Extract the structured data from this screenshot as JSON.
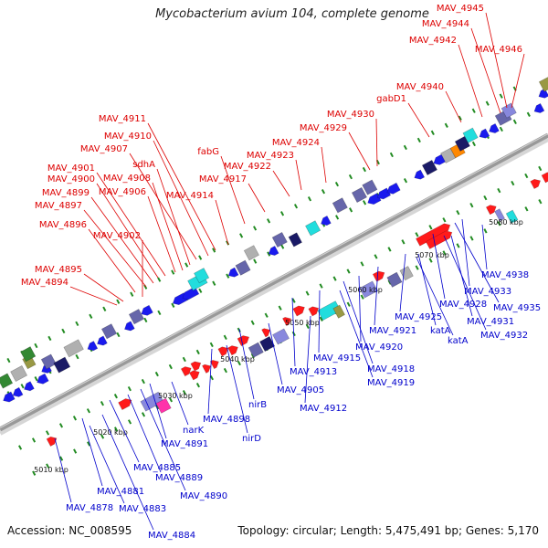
{
  "title": "Mycobacterium avium 104, complete genome",
  "footer": {
    "accession": "Accession: NC_008595",
    "summary": "Topology: circular; Length: 5,475,491 bp; Genes: 5,170"
  },
  "colors": {
    "upper_label": "#dd0000",
    "lower_label": "#0000cc",
    "backbone": "#999999",
    "kbp_tick": "#228b22",
    "forward_gene": "#ff0000",
    "reverse_gene": "#0000dd"
  },
  "kbp_marks": [
    "5010 kbp",
    "5020 kbp",
    "5030 kbp",
    "5040 kbp",
    "5050 kbp",
    "5060 kbp",
    "5070 kbp",
    "5080 kbp"
  ],
  "upper_labels": [
    "MAV_4945",
    "MAV_4944",
    "MAV_4942",
    "MAV_4946",
    "MAV_4940",
    "gabD1",
    "MAV_4930",
    "MAV_4929",
    "MAV_4924",
    "MAV_4923",
    "MAV_4922",
    "MAV_4917",
    "fabG",
    "MAV_4911",
    "MAV_4910",
    "MAV_4907",
    "sdhA",
    "MAV_4901",
    "MAV_4908",
    "MAV_4900",
    "MAV_4906",
    "MAV_4914",
    "MAV_4899",
    "MAV_4897",
    "MAV_4896",
    "MAV_4902",
    "MAV_4895",
    "MAV_4894"
  ],
  "lower_labels": [
    "MAV_4938",
    "MAV_4933",
    "MAV_4935",
    "MAV_4928",
    "MAV_4931",
    "MAV_4925",
    "MAV_4932",
    "katA",
    "katA",
    "MAV_4921",
    "MAV_4920",
    "MAV_4915",
    "MAV_4918",
    "MAV_4913",
    "MAV_4919",
    "MAV_4905",
    "MAV_4912",
    "nirB",
    "MAV_4898",
    "nirD",
    "narK",
    "MAV_4891",
    "MAV_4885",
    "MAV_4889",
    "MAV_4881",
    "MAV_4890",
    "MAV_4878",
    "MAV_4883",
    "MAV_4884"
  ]
}
